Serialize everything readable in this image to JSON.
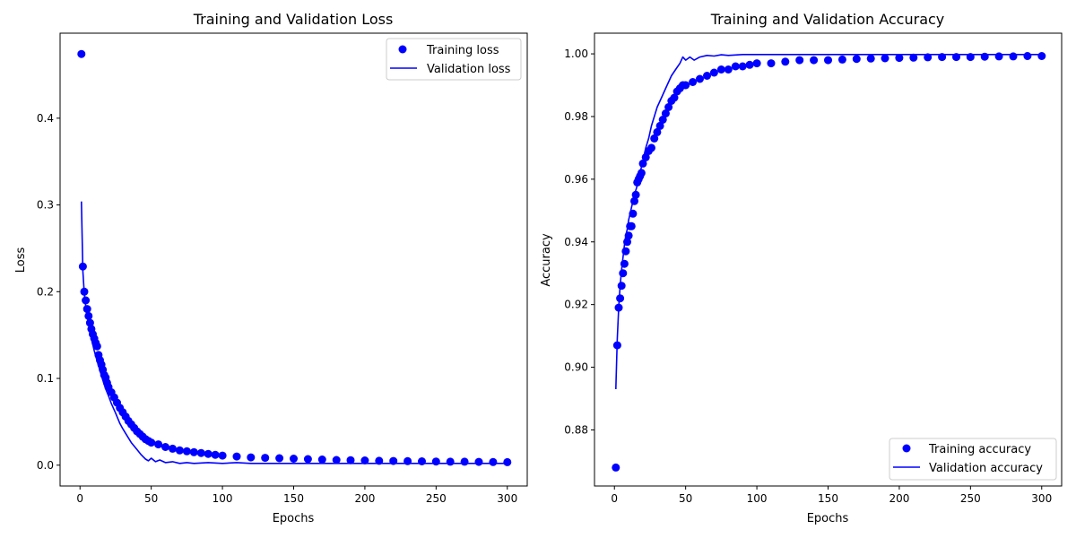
{
  "chart_data": [
    {
      "type": "line",
      "title": "Training and Validation Loss",
      "xlabel": "Epochs",
      "ylabel": "Loss",
      "xlim": [
        -14,
        314
      ],
      "ylim": [
        -0.024,
        0.498
      ],
      "xticks": [
        0,
        50,
        100,
        150,
        200,
        250,
        300
      ],
      "yticks": [
        0.0,
        0.1,
        0.2,
        0.3,
        0.4
      ],
      "ytick_labels": [
        "0.0",
        "0.1",
        "0.2",
        "0.3",
        "0.4"
      ],
      "grid": false,
      "legend_position": "top-right",
      "color": "#0000ff",
      "series": [
        {
          "name": "Training loss",
          "style": "points",
          "x": [
            1,
            2,
            3,
            4,
            5,
            6,
            7,
            8,
            9,
            10,
            11,
            12,
            13,
            14,
            15,
            16,
            17,
            18,
            19,
            20,
            22,
            24,
            26,
            28,
            30,
            32,
            34,
            36,
            38,
            40,
            42,
            44,
            46,
            48,
            50,
            55,
            60,
            65,
            70,
            75,
            80,
            85,
            90,
            95,
            100,
            110,
            120,
            130,
            140,
            150,
            160,
            170,
            180,
            190,
            200,
            210,
            220,
            230,
            240,
            250,
            260,
            270,
            280,
            290,
            300
          ],
          "y": [
            0.474,
            0.229,
            0.2,
            0.19,
            0.18,
            0.172,
            0.164,
            0.157,
            0.151,
            0.146,
            0.141,
            0.137,
            0.127,
            0.121,
            0.116,
            0.11,
            0.104,
            0.101,
            0.095,
            0.09,
            0.084,
            0.078,
            0.072,
            0.066,
            0.061,
            0.056,
            0.051,
            0.047,
            0.043,
            0.039,
            0.036,
            0.033,
            0.03,
            0.028,
            0.026,
            0.024,
            0.021,
            0.019,
            0.017,
            0.016,
            0.015,
            0.014,
            0.013,
            0.012,
            0.011,
            0.01,
            0.009,
            0.0085,
            0.008,
            0.0075,
            0.007,
            0.0065,
            0.006,
            0.0058,
            0.0055,
            0.005,
            0.0048,
            0.0046,
            0.0044,
            0.0042,
            0.004,
            0.004,
            0.0038,
            0.0036,
            0.0035
          ]
        },
        {
          "name": "Validation loss",
          "style": "line",
          "x": [
            1,
            2,
            3,
            4,
            5,
            6,
            7,
            8,
            9,
            10,
            12,
            14,
            16,
            18,
            20,
            22,
            25,
            28,
            30,
            33,
            36,
            40,
            43,
            46,
            48,
            50,
            53,
            56,
            60,
            65,
            70,
            75,
            80,
            90,
            100,
            110,
            120,
            150,
            200,
            250,
            300
          ],
          "y": [
            0.304,
            0.224,
            0.198,
            0.183,
            0.172,
            0.163,
            0.154,
            0.146,
            0.139,
            0.132,
            0.12,
            0.109,
            0.098,
            0.088,
            0.08,
            0.071,
            0.06,
            0.048,
            0.042,
            0.034,
            0.026,
            0.018,
            0.012,
            0.007,
            0.005,
            0.008,
            0.004,
            0.006,
            0.003,
            0.004,
            0.002,
            0.003,
            0.002,
            0.003,
            0.002,
            0.003,
            0.002,
            0.002,
            0.002,
            0.002,
            0.002
          ]
        }
      ]
    },
    {
      "type": "line",
      "title": "Training and Validation Accuracy",
      "xlabel": "Epochs",
      "ylabel": "Accuracy",
      "xlim": [
        -14,
        314
      ],
      "ylim": [
        0.8621,
        1.0066
      ],
      "xticks": [
        0,
        50,
        100,
        150,
        200,
        250,
        300
      ],
      "yticks": [
        0.88,
        0.9,
        0.92,
        0.94,
        0.96,
        0.98,
        1.0
      ],
      "ytick_labels": [
        "0.88",
        "0.90",
        "0.92",
        "0.94",
        "0.96",
        "0.98",
        "1.00"
      ],
      "grid": false,
      "legend_position": "bottom-right",
      "color": "#0000ff",
      "series": [
        {
          "name": "Training accuracy",
          "style": "points",
          "x": [
            1,
            2,
            3,
            4,
            5,
            6,
            7,
            8,
            9,
            10,
            11,
            12,
            13,
            14,
            15,
            16,
            17,
            18,
            19,
            20,
            22,
            24,
            26,
            28,
            30,
            32,
            34,
            36,
            38,
            40,
            42,
            44,
            46,
            48,
            50,
            55,
            60,
            65,
            70,
            75,
            80,
            85,
            90,
            95,
            100,
            110,
            120,
            130,
            140,
            150,
            160,
            170,
            180,
            190,
            200,
            210,
            220,
            230,
            240,
            250,
            260,
            270,
            280,
            290,
            300
          ],
          "y": [
            0.868,
            0.907,
            0.919,
            0.922,
            0.926,
            0.93,
            0.933,
            0.937,
            0.94,
            0.942,
            0.945,
            0.945,
            0.949,
            0.953,
            0.955,
            0.959,
            0.96,
            0.961,
            0.962,
            0.965,
            0.967,
            0.969,
            0.97,
            0.973,
            0.975,
            0.977,
            0.979,
            0.981,
            0.983,
            0.985,
            0.986,
            0.988,
            0.989,
            0.99,
            0.99,
            0.991,
            0.992,
            0.993,
            0.994,
            0.995,
            0.995,
            0.996,
            0.996,
            0.9965,
            0.997,
            0.997,
            0.9975,
            0.998,
            0.998,
            0.998,
            0.9982,
            0.9984,
            0.9985,
            0.9986,
            0.9987,
            0.9988,
            0.9989,
            0.999,
            0.999,
            0.999,
            0.9991,
            0.9992,
            0.9992,
            0.9993,
            0.9993
          ]
        },
        {
          "name": "Validation accuracy",
          "style": "line",
          "x": [
            1,
            2,
            3,
            4,
            5,
            6,
            7,
            8,
            9,
            10,
            12,
            14,
            16,
            18,
            20,
            22,
            24,
            26,
            28,
            30,
            33,
            36,
            40,
            43,
            46,
            48,
            50,
            53,
            56,
            60,
            65,
            70,
            75,
            80,
            90,
            100,
            110,
            120,
            150,
            200,
            250,
            300
          ],
          "y": [
            0.893,
            0.909,
            0.919,
            0.926,
            0.931,
            0.935,
            0.939,
            0.942,
            0.944,
            0.947,
            0.951,
            0.955,
            0.958,
            0.962,
            0.966,
            0.97,
            0.973,
            0.977,
            0.98,
            0.983,
            0.986,
            0.989,
            0.993,
            0.995,
            0.997,
            0.999,
            0.998,
            0.999,
            0.998,
            0.999,
            0.9995,
            0.9993,
            0.9997,
            0.9995,
            0.9998,
            0.9998,
            0.9998,
            0.9998,
            0.9998,
            0.9998,
            0.9998,
            0.9998
          ]
        }
      ]
    }
  ]
}
